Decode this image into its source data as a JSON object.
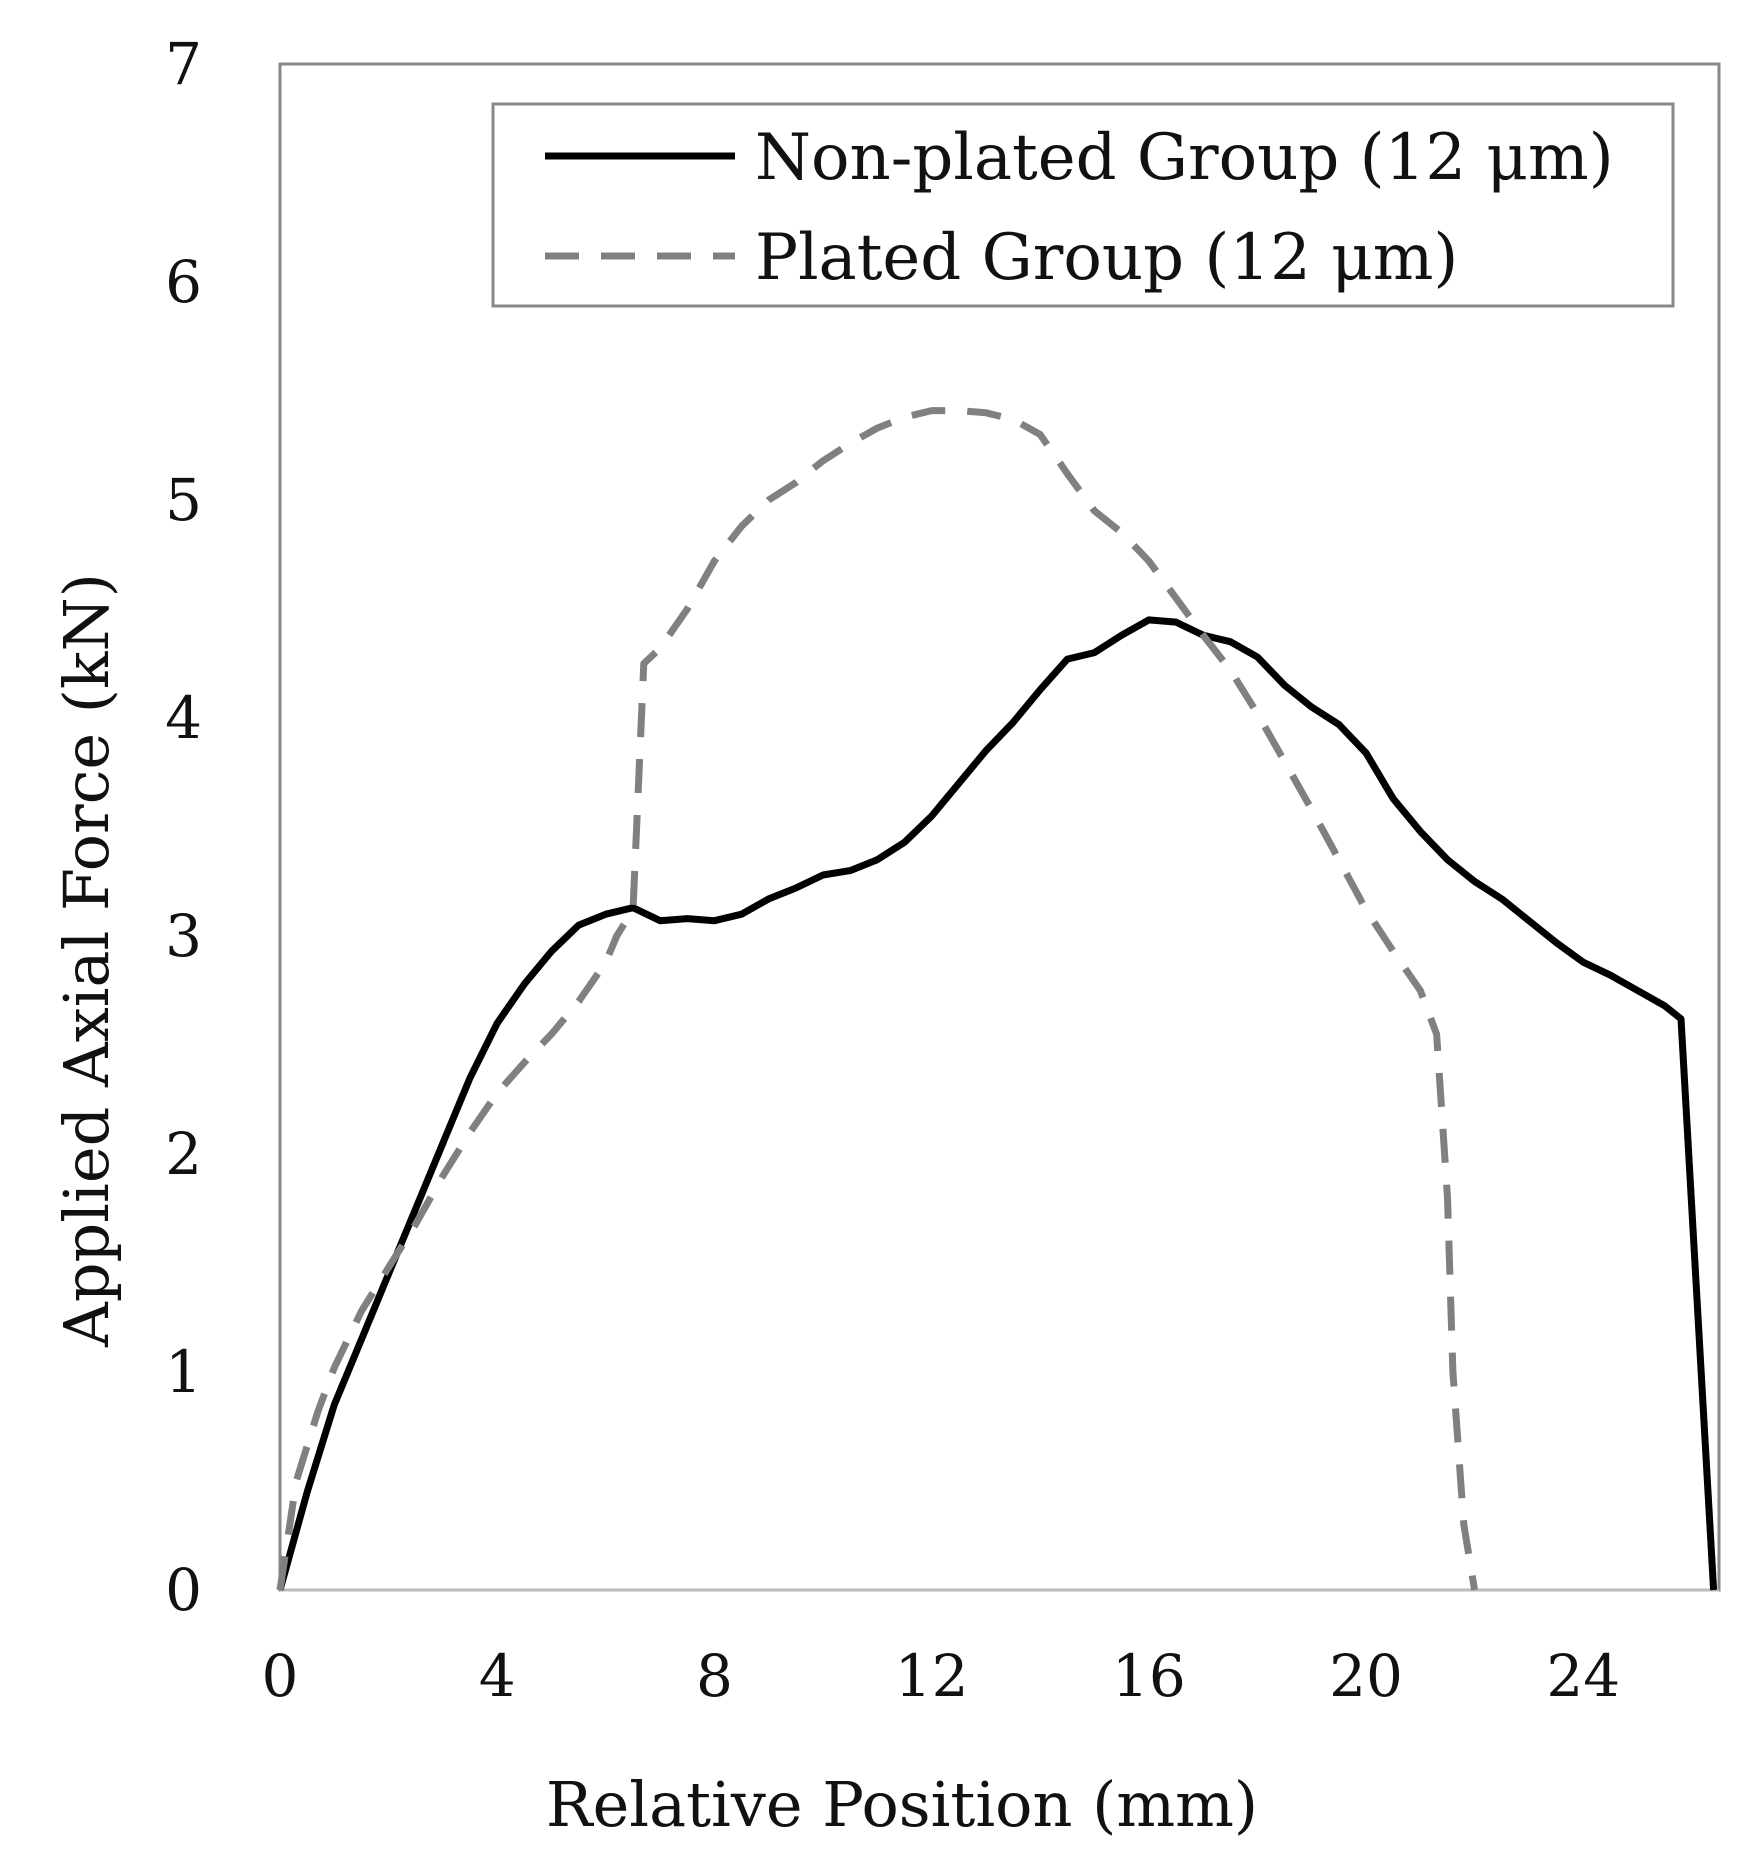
{
  "chart_data": {
    "type": "line",
    "title": "",
    "xlabel": "Relative Position (mm)",
    "ylabel": "Applied Axial Force (kN)",
    "xlim": [
      0,
      26.5
    ],
    "ylim": [
      0,
      7
    ],
    "xticks": [
      0,
      4,
      8,
      12,
      16,
      20,
      24
    ],
    "yticks": [
      0,
      1,
      2,
      3,
      4,
      5,
      6,
      7
    ],
    "xtick_labels": [
      "0",
      "4",
      "8",
      "12",
      "16",
      "20",
      "24"
    ],
    "ytick_labels": [
      "0",
      "1",
      "2",
      "3",
      "4",
      "5",
      "6",
      "7"
    ],
    "grid": false,
    "legend_position": "top-right",
    "series": [
      {
        "name": "Non-plated Group (12 μm)",
        "color": "#000000",
        "dash": "solid",
        "x": [
          0,
          0.5,
          1,
          1.5,
          2,
          2.5,
          3,
          3.5,
          4,
          4.5,
          5,
          5.5,
          6,
          6.5,
          7,
          7.5,
          8,
          8.5,
          9,
          9.5,
          10,
          10.5,
          11,
          11.5,
          12,
          12.5,
          13,
          13.5,
          14,
          14.5,
          15,
          15.5,
          16,
          16.5,
          17,
          17.5,
          18,
          18.5,
          19,
          19.5,
          20,
          20.5,
          21,
          21.5,
          22,
          22.5,
          23,
          23.5,
          24,
          24.5,
          25,
          25.5,
          25.8,
          26.4
        ],
        "y": [
          0,
          0.45,
          0.85,
          1.15,
          1.45,
          1.75,
          2.05,
          2.35,
          2.6,
          2.78,
          2.93,
          3.05,
          3.1,
          3.13,
          3.07,
          3.08,
          3.07,
          3.1,
          3.17,
          3.22,
          3.28,
          3.3,
          3.35,
          3.43,
          3.55,
          3.7,
          3.85,
          3.98,
          4.13,
          4.27,
          4.3,
          4.38,
          4.45,
          4.44,
          4.38,
          4.35,
          4.28,
          4.15,
          4.05,
          3.97,
          3.84,
          3.63,
          3.48,
          3.35,
          3.25,
          3.17,
          3.07,
          2.97,
          2.88,
          2.82,
          2.75,
          2.68,
          2.62,
          0
        ]
      },
      {
        "name": "Plated Group (12 μm)",
        "color": "#808080",
        "dash": "dashed",
        "x": [
          0,
          0.3,
          0.7,
          1,
          1.5,
          2,
          2.5,
          3,
          3.5,
          4,
          4.5,
          5,
          5.5,
          6,
          6.2,
          6.5,
          6.7,
          7,
          7.5,
          8,
          8.5,
          9,
          9.5,
          10,
          10.5,
          11,
          11.5,
          12,
          12.5,
          13,
          13.5,
          14,
          14.5,
          15,
          15.5,
          16,
          16.5,
          17,
          17.5,
          18,
          18.5,
          19,
          19.5,
          20,
          20.5,
          21,
          21.3,
          21.5,
          21.6,
          21.8,
          22
        ],
        "y": [
          0,
          0.5,
          0.82,
          1.02,
          1.28,
          1.48,
          1.68,
          1.9,
          2.1,
          2.28,
          2.42,
          2.55,
          2.7,
          2.88,
          3.0,
          3.12,
          4.25,
          4.32,
          4.5,
          4.72,
          4.88,
          5.0,
          5.08,
          5.18,
          5.26,
          5.33,
          5.38,
          5.41,
          5.41,
          5.4,
          5.37,
          5.3,
          5.12,
          4.95,
          4.85,
          4.72,
          4.55,
          4.38,
          4.22,
          4.02,
          3.8,
          3.58,
          3.35,
          3.12,
          2.93,
          2.75,
          2.55,
          1.8,
          1.0,
          0.3,
          0
        ]
      }
    ]
  }
}
